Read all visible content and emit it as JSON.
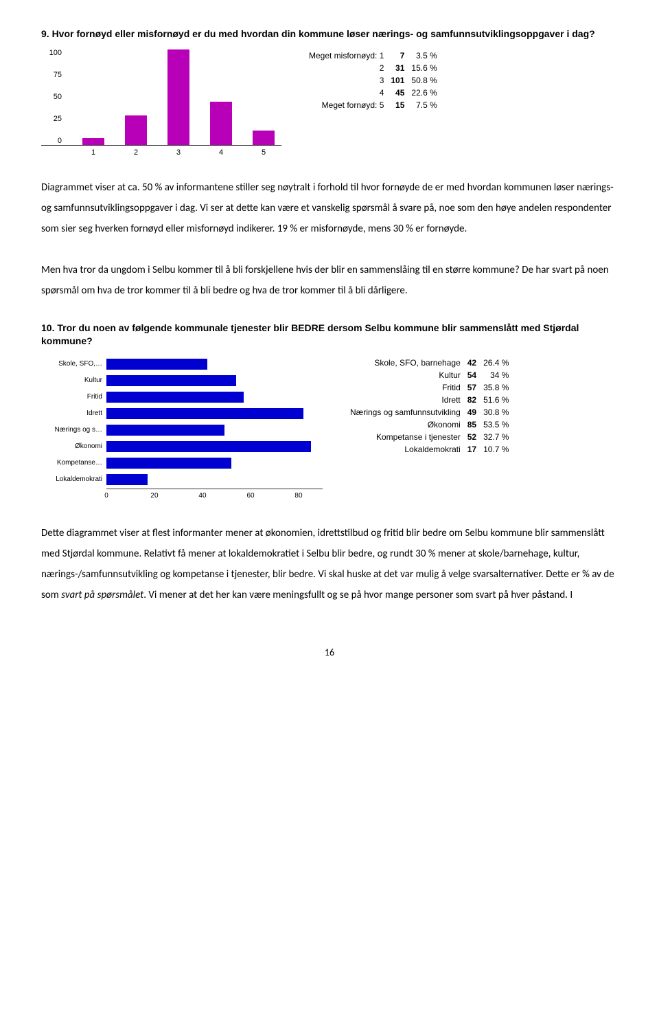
{
  "q9": {
    "title": "9. Hvor fornøyd eller misfornøyd er du med hvordan din kommune løser nærings- og samfunnsutviklingsoppgaver i dag?",
    "chart": {
      "type": "bar",
      "categories": [
        "1",
        "2",
        "3",
        "4",
        "5"
      ],
      "values": [
        7,
        31,
        101,
        45,
        15
      ],
      "bar_color": "#b800b8",
      "ylim": [
        0,
        100
      ],
      "yticks": [
        100,
        75,
        50,
        25,
        0
      ]
    },
    "legend": [
      {
        "label": "Meget misfornøyd: 1",
        "count": "7",
        "pct": "3.5 %"
      },
      {
        "label": "2",
        "count": "31",
        "pct": "15.6 %"
      },
      {
        "label": "3",
        "count": "101",
        "pct": "50.8 %"
      },
      {
        "label": "4",
        "count": "45",
        "pct": "22.6 %"
      },
      {
        "label": "Meget fornøyd: 5",
        "count": "15",
        "pct": "7.5 %"
      }
    ]
  },
  "para1": "Diagrammet viser at ca. 50 % av informantene stiller seg nøytralt i forhold til hvor fornøyde de er med hvordan kommunen løser nærings- og samfunnsutviklingsoppgaver i dag. Vi ser at dette kan være et vanskelig spørsmål å svare på, noe som den høye andelen respondenter som sier seg hverken fornøyd eller misfornøyd indikerer. 19 % er misfornøyde, mens 30 % er fornøyde.",
  "para2": "Men hva tror da ungdom i Selbu kommer til å bli forskjellene hvis der blir en sammenslåing til en større kommune? De har svart på noen spørsmål om hva de tror kommer til å bli bedre og hva de tror kommer til å bli dårligere.",
  "q10": {
    "title": "10. Tror du noen av følgende kommunale tjenester blir BEDRE dersom Selbu kommune blir sammenslått med Stjørdal kommune?",
    "chart": {
      "type": "hbar",
      "xlim": [
        0,
        90
      ],
      "xticks": [
        0,
        20,
        40,
        60,
        80
      ],
      "bar_color": "#0000d0",
      "items": [
        {
          "label": "Skole, SFO,…",
          "value": 42
        },
        {
          "label": "Kultur",
          "value": 54
        },
        {
          "label": "Fritid",
          "value": 57
        },
        {
          "label": "Idrett",
          "value": 82
        },
        {
          "label": "Nærings og s…",
          "value": 49
        },
        {
          "label": "Økonomi",
          "value": 85
        },
        {
          "label": "Kompetanse…",
          "value": 52
        },
        {
          "label": "Lokaldemokrati",
          "value": 17
        }
      ]
    },
    "legend": [
      {
        "label": "Skole, SFO, barnehage",
        "count": "42",
        "pct": "26.4 %"
      },
      {
        "label": "Kultur",
        "count": "54",
        "pct": "34 %"
      },
      {
        "label": "Fritid",
        "count": "57",
        "pct": "35.8 %"
      },
      {
        "label": "Idrett",
        "count": "82",
        "pct": "51.6 %"
      },
      {
        "label": "Nærings og samfunnsutvikling",
        "count": "49",
        "pct": "30.8 %"
      },
      {
        "label": "Økonomi",
        "count": "85",
        "pct": "53.5 %"
      },
      {
        "label": "Kompetanse i tjenester",
        "count": "52",
        "pct": "32.7 %"
      },
      {
        "label": "Lokaldemokrati",
        "count": "17",
        "pct": "10.7 %"
      }
    ]
  },
  "para3_pre": "Dette diagrammet viser at flest informanter mener at økonomien, idrettstilbud og fritid blir bedre om Selbu kommune blir sammenslått med Stjørdal kommune. Relativt få mener at lokaldemokratiet i Selbu blir bedre, og rundt 30 % mener at skole/barnehage, kultur, nærings-/samfunnsutvikling og kompetanse i tjenester, blir bedre. Vi skal huske at det var mulig å velge svarsalternativer. Dette er % av de som ",
  "para3_italic": "svart på spørsmålet",
  "para3_post": ". Vi mener at det her kan være meningsfullt og se på hvor mange personer som svart på hver påstand. I",
  "page_number": "16"
}
